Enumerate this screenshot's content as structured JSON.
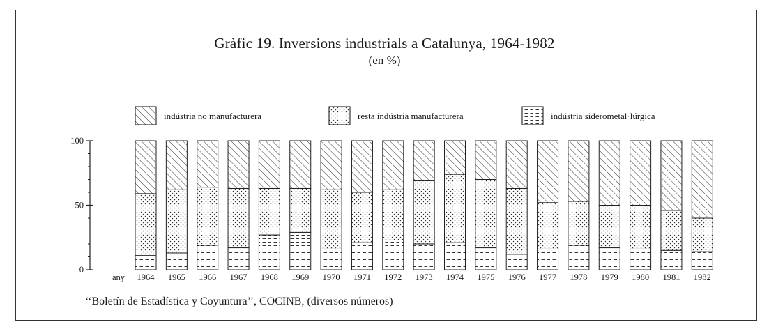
{
  "chart_data": {
    "type": "bar",
    "stacked": true,
    "title": "Gràfic 19. Inversions industrials a Catalunya, 1964-1982",
    "subtitle": "(en %)",
    "xlabel": "any",
    "ylabel": "",
    "ylim": [
      0,
      100
    ],
    "yticks": [
      "100",
      "50",
      "0"
    ],
    "categories": [
      "1964",
      "1965",
      "1966",
      "1967",
      "1968",
      "1969",
      "1970",
      "1971",
      "1972",
      "1973",
      "1974",
      "1975",
      "1976",
      "1977",
      "1978",
      "1979",
      "1980",
      "1981",
      "1982"
    ],
    "series": [
      {
        "name": "indústria siderometal·lúrgica",
        "pattern": "dashes",
        "values": [
          11,
          13,
          19,
          17,
          27,
          29,
          16,
          21,
          23,
          20,
          21,
          17,
          12,
          16,
          19,
          17,
          16,
          15,
          14
        ]
      },
      {
        "name": "resta indústria manufacturera",
        "pattern": "dots",
        "values": [
          48,
          49,
          45,
          46,
          36,
          34,
          46,
          39,
          39,
          49,
          53,
          53,
          51,
          36,
          34,
          33,
          34,
          31,
          26
        ]
      },
      {
        "name": "indústria no manufacturera",
        "pattern": "hatch",
        "values": [
          41,
          38,
          36,
          37,
          37,
          37,
          38,
          40,
          38,
          31,
          26,
          30,
          37,
          48,
          47,
          50,
          50,
          54,
          60
        ]
      }
    ],
    "legend_position": "top",
    "grid": false
  },
  "source": "‘‘Boletín de Estadística y Coyuntura’’, COCINB, (diversos números)"
}
